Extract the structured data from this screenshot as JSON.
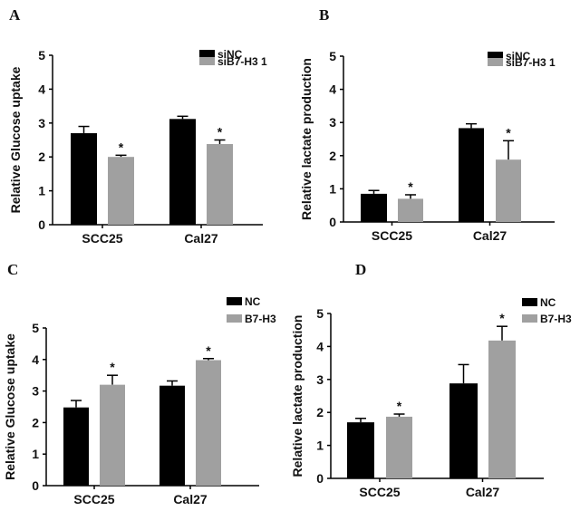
{
  "chart_data": [
    {
      "type": "bar",
      "panel_label": "A",
      "ylabel": "Relative Glucose uptake",
      "ylim": [
        0,
        5
      ],
      "yticks": [
        "0",
        "1",
        "2",
        "3",
        "4",
        "5"
      ],
      "categories": [
        "SCC25",
        "Cal27"
      ],
      "legend_position": "top-right",
      "series": [
        {
          "name": "siNC",
          "color": "#000000",
          "values": [
            2.7,
            3.12
          ],
          "errors": [
            0.2,
            0.08
          ],
          "significance": [
            "",
            ""
          ]
        },
        {
          "name": "siB7-H3 1",
          "color": "#a0a0a0",
          "values": [
            2.0,
            2.38
          ],
          "errors": [
            0.05,
            0.12
          ],
          "significance": [
            "*",
            "*"
          ]
        }
      ]
    },
    {
      "type": "bar",
      "panel_label": "B",
      "ylabel": "Relative lactate production",
      "ylim": [
        0,
        5
      ],
      "yticks": [
        "0",
        "1",
        "2",
        "3",
        "4",
        "5"
      ],
      "categories": [
        "SCC25",
        "Cal27"
      ],
      "legend_position": "top-right",
      "series": [
        {
          "name": "siNC",
          "color": "#000000",
          "values": [
            0.85,
            2.83
          ],
          "errors": [
            0.1,
            0.13
          ],
          "significance": [
            "",
            ""
          ]
        },
        {
          "name": "siB7-H3 1",
          "color": "#a0a0a0",
          "values": [
            0.7,
            1.88
          ],
          "errors": [
            0.12,
            0.57
          ],
          "significance": [
            "*",
            "*"
          ]
        }
      ]
    },
    {
      "type": "bar",
      "panel_label": "C",
      "ylabel": "Relative Glucose uptake",
      "ylim": [
        0,
        5
      ],
      "yticks": [
        "0",
        "1",
        "2",
        "3",
        "4",
        "5"
      ],
      "categories": [
        "SCC25",
        "Cal27"
      ],
      "legend_position": "top-right",
      "series": [
        {
          "name": "NC",
          "color": "#000000",
          "values": [
            2.48,
            3.17
          ],
          "errors": [
            0.22,
            0.15
          ],
          "significance": [
            "",
            ""
          ]
        },
        {
          "name": "B7-H3",
          "color": "#a0a0a0",
          "values": [
            3.2,
            3.98
          ],
          "errors": [
            0.3,
            0.05
          ],
          "significance": [
            "*",
            "*"
          ]
        }
      ]
    },
    {
      "type": "bar",
      "panel_label": "D",
      "ylabel": "Relative lactate production",
      "ylim": [
        0,
        5
      ],
      "yticks": [
        "0",
        "1",
        "2",
        "3",
        "4",
        "5"
      ],
      "categories": [
        "SCC25",
        "Cal27"
      ],
      "legend_position": "top-right",
      "series": [
        {
          "name": "NC",
          "color": "#000000",
          "values": [
            1.7,
            2.88
          ],
          "errors": [
            0.12,
            0.57
          ],
          "significance": [
            "",
            ""
          ]
        },
        {
          "name": "B7-H3",
          "color": "#a0a0a0",
          "values": [
            1.87,
            4.18
          ],
          "errors": [
            0.08,
            0.43
          ],
          "significance": [
            "*",
            "*"
          ]
        }
      ]
    }
  ]
}
